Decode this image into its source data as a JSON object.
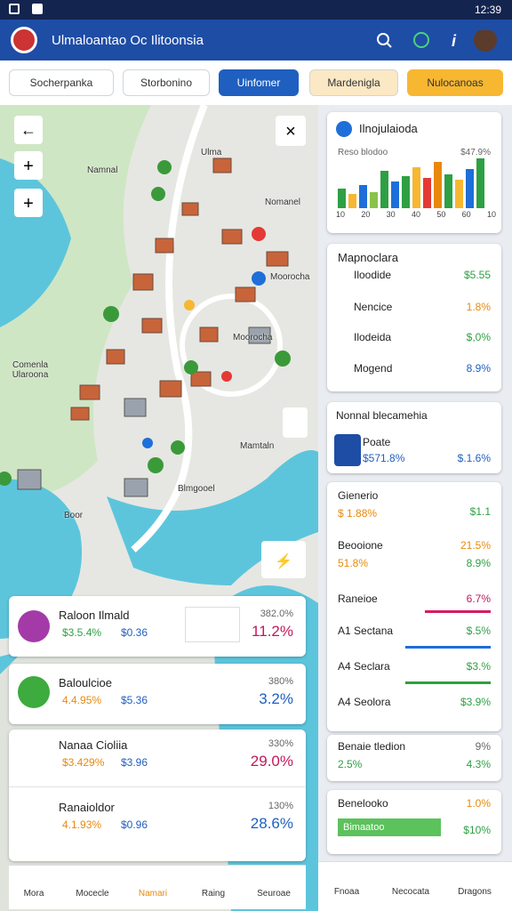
{
  "status_bar": {
    "time": "12:39"
  },
  "app_bar": {
    "title": "Ulmaloantao Oc Ilitoonsia"
  },
  "tabs": [
    "Socherpanka",
    "Storbonino",
    "Uinfomer",
    "Mardenigla",
    "Nulocanoas"
  ],
  "map": {
    "labels": [
      "Namnal",
      "Ulma",
      "Nomanel",
      "Moorocha",
      "Comenla Ularoona",
      "Moorocha",
      "Mamtaln",
      "Blmgooel",
      "Boor"
    ]
  },
  "left_cards": [
    {
      "title": "Raloon Ilmald",
      "a": "$3.5.4%",
      "b": "$0.36",
      "top": "382.0%",
      "big": "11.2%"
    },
    {
      "title": "Baloulcioe",
      "a": "4.4.95%",
      "b": "$5.36",
      "top": "380%",
      "big": "3.2%"
    },
    {
      "title": "Nanaa Cioliia",
      "a": "$3.429%",
      "b": "$3.96",
      "top": "330%",
      "big": "29.0%"
    },
    {
      "title": "Ranaioldor",
      "a": "4.1.93%",
      "b": "$0.96",
      "top": "130%",
      "big": "28.6%"
    }
  ],
  "left_nav": [
    "Mora",
    "Mocecle",
    "Namari",
    "Raing",
    "Seuroae"
  ],
  "chart_card": {
    "title": "Ilnojulaioda",
    "sub": "Reso blodoo",
    "value": "$47.9%",
    "ticks": [
      "10",
      "20",
      "30",
      "40",
      "50",
      "60",
      "10"
    ]
  },
  "list_card": {
    "title": "Mapnoclara",
    "rows": [
      [
        "Iloodide",
        "$5.55"
      ],
      [
        "Nencice",
        "1.8%"
      ],
      [
        "Ilodeida",
        "$,0%"
      ],
      [
        "Mogend",
        "8.9%"
      ]
    ]
  },
  "feature_card": {
    "title": "Nonnal blecamehia",
    "name": "Poate",
    "a": "$571.8%",
    "b": "$.1.6%"
  },
  "stats_card": {
    "rows": [
      [
        "Gienerio",
        "$1.1"
      ],
      [
        "$ 1.88%",
        ""
      ],
      [
        "Beooione",
        "21.5%"
      ],
      [
        "51.8%",
        "8.9%"
      ],
      [
        "Raneioe",
        "6.7%"
      ],
      [
        "A1 Sectana",
        "$.5%"
      ],
      [
        "A4 Seclara",
        "$3.%"
      ],
      [
        "A4 Seolora",
        "$3.9%"
      ]
    ]
  },
  "small_card": {
    "title": "Benaie tledion",
    "top": "9%",
    "a": "2.5%",
    "b": "4.3%"
  },
  "progress_card": {
    "title": "Benelooko",
    "top": "1.0%",
    "bar": "Bimaatoo",
    "value": "$10%"
  },
  "right_nav": [
    "Fnoaa",
    "Necocata",
    "Dragons"
  ]
}
